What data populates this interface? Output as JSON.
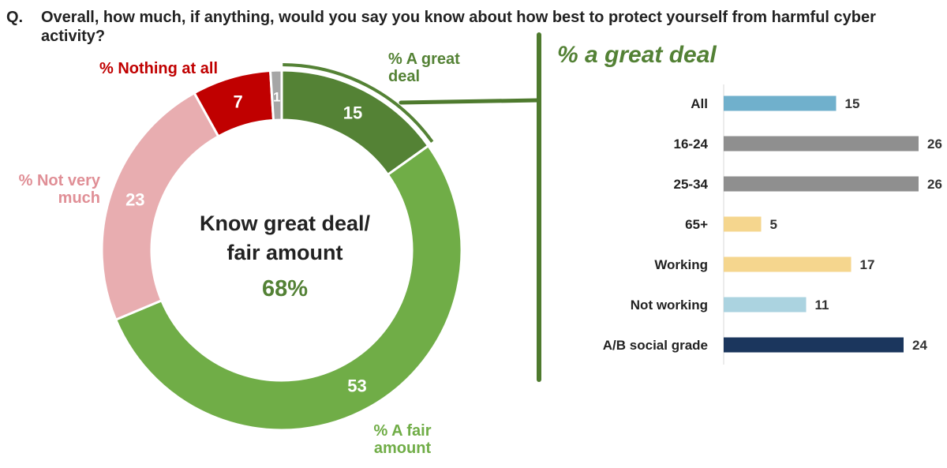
{
  "question": {
    "number": "Q.",
    "text": "Overall, how much, if anything, would you say you know about how best to protect yourself from harmful cyber activity?"
  },
  "chart_data": [
    {
      "type": "pie",
      "variant": "donut",
      "center_text": {
        "line1": "Know great deal/",
        "line2": "fair amount",
        "value": "68%"
      },
      "slices": [
        {
          "label": "% A great deal",
          "value": 15,
          "color": "#548235"
        },
        {
          "label": "% A fair amount",
          "value": 53,
          "color": "#70AD47"
        },
        {
          "label": "% Not very much",
          "value": 23,
          "color": "#E8ADB0"
        },
        {
          "label": "% Nothing at all",
          "value": 7,
          "color": "#C00000"
        },
        {
          "label": "",
          "value": 1,
          "color": "#A6A6A6"
        }
      ]
    },
    {
      "type": "bar",
      "orientation": "horizontal",
      "title": "% a great deal",
      "xlim": [
        0,
        26
      ],
      "categories": [
        "All",
        "16-24",
        "25-34",
        "65+",
        "Working",
        "Not working",
        "A/B social grade"
      ],
      "values": [
        15,
        26,
        26,
        5,
        17,
        11,
        24
      ],
      "colors": [
        "#70B0CC",
        "#8F8F8F",
        "#8F8F8F",
        "#F5D68E",
        "#F5D68E",
        "#ABD3E0",
        "#1B365D"
      ]
    }
  ],
  "colors": {
    "title_green": "#538135",
    "connector_green": "#4E7A2E"
  }
}
